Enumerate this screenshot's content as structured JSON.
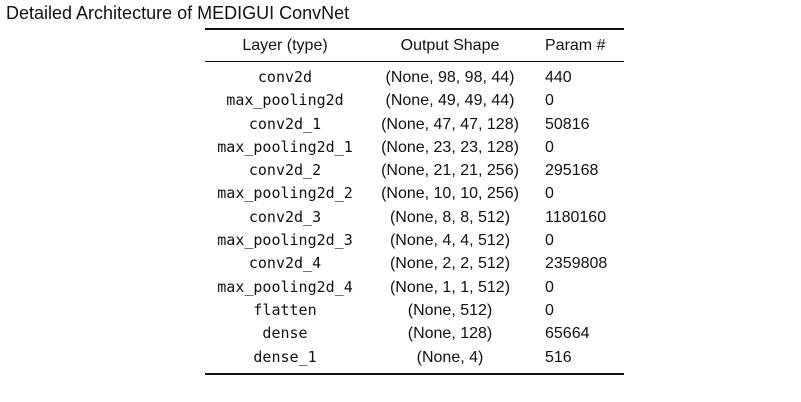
{
  "caption": "Detailed Architecture of MEDIGUI ConvNet",
  "table": {
    "headers": {
      "layer": "Layer (type)",
      "shape": "Output Shape",
      "params": "Param #"
    },
    "rows": [
      {
        "layer": "conv2d",
        "shape": "(None, 98, 98, 44)",
        "params": "440"
      },
      {
        "layer": "max_pooling2d",
        "shape": "(None, 49, 49, 44)",
        "params": "0"
      },
      {
        "layer": "conv2d_1",
        "shape": "(None, 47, 47, 128)",
        "params": "50816"
      },
      {
        "layer": "max_pooling2d_1",
        "shape": "(None, 23, 23, 128)",
        "params": "0"
      },
      {
        "layer": "conv2d_2",
        "shape": "(None, 21, 21, 256)",
        "params": "295168"
      },
      {
        "layer": "max_pooling2d_2",
        "shape": "(None, 10, 10, 256)",
        "params": "0"
      },
      {
        "layer": "conv2d_3",
        "shape": "(None, 8, 8, 512)",
        "params": "1180160"
      },
      {
        "layer": "max_pooling2d_3",
        "shape": "(None, 4, 4, 512)",
        "params": "0"
      },
      {
        "layer": "conv2d_4",
        "shape": "(None, 2, 2, 512)",
        "params": "2359808"
      },
      {
        "layer": "max_pooling2d_4",
        "shape": "(None, 1, 1, 512)",
        "params": "0"
      },
      {
        "layer": "flatten",
        "shape": "(None, 512)",
        "params": "0"
      },
      {
        "layer": "dense",
        "shape": "(None, 128)",
        "params": "65664"
      },
      {
        "layer": "dense_1",
        "shape": "(None, 4)",
        "params": "516"
      }
    ]
  }
}
